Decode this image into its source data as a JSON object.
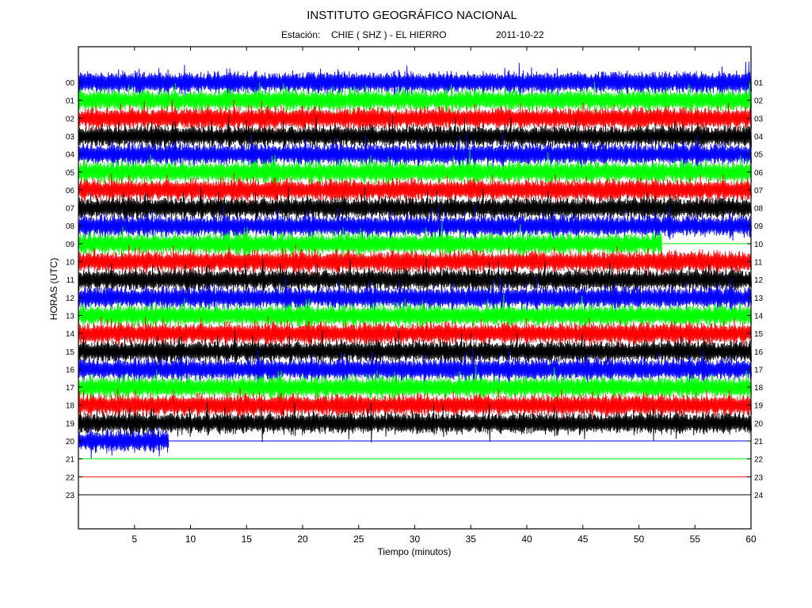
{
  "header": {
    "title": "INSTITUTO GEOGRÁFICO NACIONAL",
    "station_label": "Estación:",
    "station": "CHIE ( SHZ ) - EL HIERRO",
    "date": "2011-10-22"
  },
  "chart_data": {
    "type": "line",
    "title": "INSTITUTO GEOGRÁFICO NACIONAL",
    "xlabel": "Tiempo (minutos)",
    "ylabel": "HORAS (UTC)",
    "xlim": [
      0,
      60
    ],
    "x_ticks": [
      "5",
      "10",
      "15",
      "20",
      "25",
      "30",
      "35",
      "40",
      "45",
      "50",
      "55",
      "60"
    ],
    "left_ticks": [
      "00",
      "01",
      "02",
      "03",
      "04",
      "05",
      "06",
      "07",
      "08",
      "09",
      "10",
      "11",
      "12",
      "13",
      "14",
      "15",
      "16",
      "17",
      "18",
      "19",
      "20",
      "21",
      "22",
      "23"
    ],
    "right_ticks": [
      "01",
      "02",
      "03",
      "04",
      "05",
      "06",
      "07",
      "08",
      "09",
      "10",
      "11",
      "12",
      "13",
      "14",
      "15",
      "16",
      "17",
      "18",
      "19",
      "20",
      "21",
      "22",
      "23",
      "24"
    ],
    "colors": [
      "#0000ff",
      "#00ff00",
      "#ff0000",
      "#000000"
    ],
    "grid": false,
    "series": [
      {
        "hour": 0,
        "color": "#0000ff",
        "recorded_minutes": 60
      },
      {
        "hour": 1,
        "color": "#00ff00",
        "recorded_minutes": 60
      },
      {
        "hour": 2,
        "color": "#ff0000",
        "recorded_minutes": 60
      },
      {
        "hour": 3,
        "color": "#000000",
        "recorded_minutes": 60
      },
      {
        "hour": 4,
        "color": "#0000ff",
        "recorded_minutes": 60
      },
      {
        "hour": 5,
        "color": "#00ff00",
        "recorded_minutes": 60
      },
      {
        "hour": 6,
        "color": "#ff0000",
        "recorded_minutes": 60
      },
      {
        "hour": 7,
        "color": "#000000",
        "recorded_minutes": 60
      },
      {
        "hour": 8,
        "color": "#0000ff",
        "recorded_minutes": 60
      },
      {
        "hour": 9,
        "color": "#00ff00",
        "recorded_minutes": 52
      },
      {
        "hour": 10,
        "color": "#ff0000",
        "recorded_minutes": 60
      },
      {
        "hour": 11,
        "color": "#000000",
        "recorded_minutes": 60
      },
      {
        "hour": 12,
        "color": "#0000ff",
        "recorded_minutes": 60
      },
      {
        "hour": 13,
        "color": "#00ff00",
        "recorded_minutes": 60
      },
      {
        "hour": 14,
        "color": "#ff0000",
        "recorded_minutes": 60
      },
      {
        "hour": 15,
        "color": "#000000",
        "recorded_minutes": 60
      },
      {
        "hour": 16,
        "color": "#0000ff",
        "recorded_minutes": 60
      },
      {
        "hour": 17,
        "color": "#00ff00",
        "recorded_minutes": 60
      },
      {
        "hour": 18,
        "color": "#ff0000",
        "recorded_minutes": 60
      },
      {
        "hour": 19,
        "color": "#000000",
        "recorded_minutes": 60
      },
      {
        "hour": 20,
        "color": "#0000ff",
        "recorded_minutes": 8
      },
      {
        "hour": 21,
        "color": "#00ff00",
        "recorded_minutes": 0
      },
      {
        "hour": 22,
        "color": "#ff0000",
        "recorded_minutes": 0
      },
      {
        "hour": 23,
        "color": "#000000",
        "recorded_minutes": 0
      }
    ]
  }
}
